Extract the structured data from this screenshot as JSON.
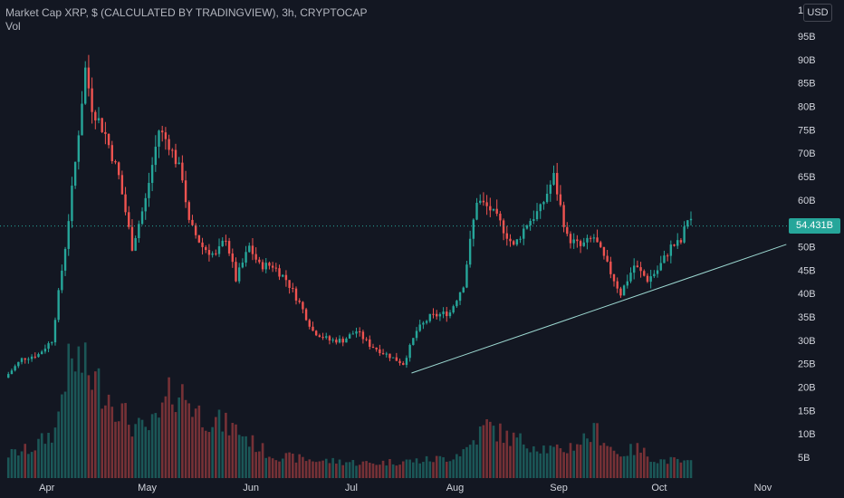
{
  "legend": {
    "title": "Market Cap XRP, $ (CALCULATED BY TRADINGVIEW), 3h, CRYPTOCAP",
    "volume_label": "Vol"
  },
  "currency_button": "USD",
  "price_scale_top_partial": "1",
  "last_value_label": "54.431B",
  "colors": {
    "background": "#131722",
    "up": "#26a69a",
    "down": "#ef5350",
    "trendline": "#9dd9d2",
    "last_price_line": "#26a69a"
  },
  "chart_data": {
    "type": "candlestick",
    "title": "Market Cap XRP, $ (CALCULATED BY TRADINGVIEW), 3h, CRYPTOCAP",
    "x_tick_labels": [
      "Apr",
      "May",
      "Jun",
      "Jul",
      "Aug",
      "Sep",
      "Oct",
      "Nov"
    ],
    "y_tick_labels": [
      "5B",
      "10B",
      "15B",
      "20B",
      "25B",
      "30B",
      "35B",
      "40B",
      "45B",
      "50B",
      "55B",
      "60B",
      "65B",
      "70B",
      "75B",
      "80B",
      "85B",
      "90B",
      "95B"
    ],
    "y_ticks_billions": [
      5,
      10,
      15,
      20,
      25,
      30,
      35,
      40,
      45,
      50,
      55,
      60,
      65,
      70,
      75,
      80,
      85,
      90,
      95
    ],
    "ylim_billions": [
      0,
      98
    ],
    "grid": false,
    "last_value_billions": 54.431,
    "price_series_billions": {
      "dates": [
        "03-20",
        "03-25",
        "03-30",
        "04-03",
        "04-07",
        "04-10",
        "04-13",
        "04-15",
        "04-19",
        "04-23",
        "04-27",
        "05-01",
        "05-05",
        "05-08",
        "05-12",
        "05-14",
        "05-18",
        "05-22",
        "05-25",
        "05-28",
        "06-01",
        "06-04",
        "06-08",
        "06-12",
        "06-16",
        "06-20",
        "06-25",
        "06-29",
        "07-03",
        "07-07",
        "07-12",
        "07-17",
        "07-21",
        "07-25",
        "07-31",
        "08-04",
        "08-08",
        "08-12",
        "08-15",
        "08-19",
        "08-23",
        "08-27",
        "08-31",
        "09-04",
        "09-08",
        "09-12",
        "09-16",
        "09-20",
        "09-24",
        "09-28",
        "10-01",
        "10-05",
        "10-08",
        "10-10"
      ],
      "values": [
        22,
        26,
        27,
        30,
        50,
        68,
        88,
        80,
        74,
        65,
        50,
        60,
        75,
        72,
        65,
        55,
        50,
        48,
        52,
        43,
        50,
        46,
        46,
        43,
        38,
        32,
        30,
        30,
        32,
        29,
        27,
        25,
        32,
        35,
        36,
        42,
        60,
        58,
        55,
        50,
        55,
        58,
        65,
        52,
        50,
        52,
        46,
        40,
        46,
        43,
        45,
        50,
        51,
        56
      ]
    },
    "volume_series_billions": {
      "dates": [
        "03-20",
        "03-27",
        "04-03",
        "04-06",
        "04-10",
        "04-14",
        "04-18",
        "04-22",
        "04-26",
        "04-30",
        "05-04",
        "05-08",
        "05-12",
        "05-16",
        "05-20",
        "05-24",
        "05-28",
        "06-01",
        "06-06",
        "06-12",
        "06-20",
        "06-28",
        "07-06",
        "07-14",
        "07-22",
        "07-30",
        "08-04",
        "08-10",
        "08-16",
        "08-22",
        "08-28",
        "09-01",
        "09-06",
        "09-12",
        "09-18",
        "09-24",
        "09-30",
        "10-04",
        "10-10"
      ],
      "values": [
        4,
        5,
        8,
        18,
        20,
        17,
        15,
        12,
        9,
        8,
        10,
        15,
        14,
        11,
        10,
        9,
        8,
        6,
        4,
        3.5,
        3,
        2.8,
        2.5,
        2.8,
        3,
        3.5,
        5,
        9,
        7,
        6,
        5,
        4.5,
        6,
        8,
        4,
        5,
        3,
        3,
        2.5
      ]
    },
    "trendline_billions": {
      "start": {
        "date": "07-19",
        "value": 23
      },
      "end": {
        "date": "11-08",
        "value": 50.5
      }
    }
  }
}
